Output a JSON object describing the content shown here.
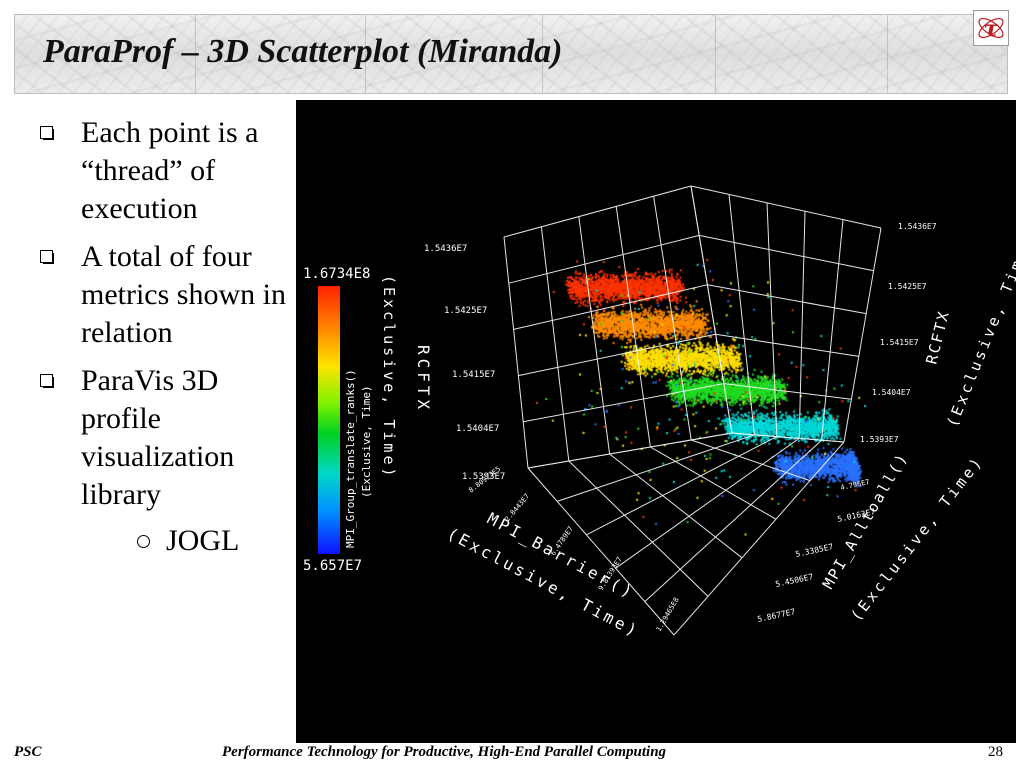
{
  "slide": {
    "title": "ParaProf – 3D Scatterplot (Miranda)",
    "number": "28",
    "logo_glyph": "τ"
  },
  "bullets": [
    {
      "text": "Each point is a “thread” of execution"
    },
    {
      "text": "A total of four metrics shown in relation"
    },
    {
      "text": "ParaVis 3D profile visualization library"
    }
  ],
  "sub_bullets": [
    {
      "text": "JOGL"
    }
  ],
  "footer": {
    "left": "PSC",
    "center": "Performance Technology for Productive, High-End Parallel Computing"
  },
  "chart_data": {
    "type": "scatter",
    "dimensions": 3,
    "background": "#000000",
    "axes": {
      "x": {
        "label_line1": "MPI_Barrier()",
        "label_line2": "(Exclusive, Time)",
        "ticks": [
          "8.80923E5",
          "2.8443E7",
          "6.4789E7",
          "9.81393E7",
          "1.29465E8"
        ]
      },
      "y": {
        "label_line1": "MPI_Alltoall()",
        "label_line2": "(Exclusive, Time)",
        "ticks": [
          "5.8677E7",
          "5.4506E7",
          "5.3385E7",
          "5.0163E7",
          "4.796E7"
        ]
      },
      "z_left": {
        "label": "RCFTX",
        "ticks": [
          "1.5393E7",
          "1.5404E7",
          "1.5415E7",
          "1.5425E7",
          "1.5436E7"
        ]
      },
      "z_right": {
        "label_line1": "RCFTX",
        "label_line2": "(Exclusive, Time)",
        "ticks": [
          "1.5393E7",
          "1.5404E7",
          "1.5415E7",
          "1.5425E7",
          "1.5436E7"
        ]
      }
    },
    "color_metric": {
      "label_line1": "MPI_Group_translate_ranks()",
      "label_line2": "(Exclusive, Time)",
      "max_label": "1.6734E8",
      "min_label": "5.657E7",
      "colormap": [
        "#ff2200",
        "#ff7a00",
        "#ffe400",
        "#7cf200",
        "#00d020",
        "#00d8c8",
        "#0090ff",
        "#1010ff"
      ]
    },
    "point_clusters": [
      {
        "name": "red",
        "color": "#ff3300",
        "x": 0.12,
        "y": 0.14,
        "z": 0.74
      },
      {
        "name": "orange",
        "color": "#ff8c00",
        "x": 0.18,
        "y": 0.24,
        "z": 0.66
      },
      {
        "name": "yellow",
        "color": "#ffe000",
        "x": 0.28,
        "y": 0.34,
        "z": 0.58
      },
      {
        "name": "green",
        "color": "#22dd22",
        "x": 0.42,
        "y": 0.46,
        "z": 0.52
      },
      {
        "name": "cyan",
        "color": "#00d8d8",
        "x": 0.58,
        "y": 0.62,
        "z": 0.46
      },
      {
        "name": "blue",
        "color": "#2a70ff",
        "x": 0.74,
        "y": 0.76,
        "z": 0.38
      }
    ]
  }
}
